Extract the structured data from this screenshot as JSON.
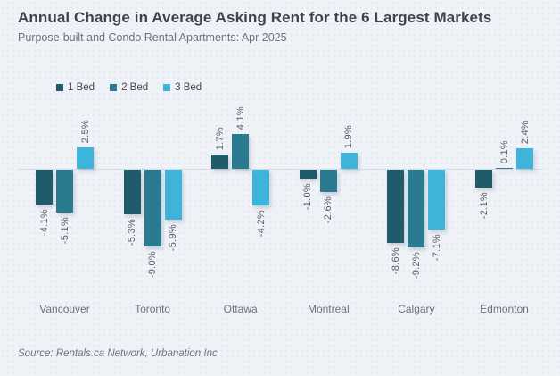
{
  "header": {
    "title": "Annual Change in Average Asking Rent for the 6 Largest Markets",
    "subtitle": "Purpose-built and Condo Rental Apartments: Apr 2025"
  },
  "source": "Source: Rentals.ca Network, Urbanation Inc",
  "colors": {
    "bed1": "#1f5b6b",
    "bed2": "#2b7b90",
    "bed3": "#3fb4da",
    "background": "#eff2f7",
    "baseline": "#d7dce3",
    "title_text": "#3f444b",
    "muted_text": "#6d737c"
  },
  "chart_data": {
    "type": "bar",
    "title": "Annual Change in Average Asking Rent for the 6 Largest Markets",
    "subtitle": "Purpose-built and Condo Rental Apartments: Apr 2025",
    "categories": [
      "Vancouver",
      "Toronto",
      "Ottawa",
      "Montreal",
      "Calgary",
      "Edmonton"
    ],
    "series": [
      {
        "name": "1 Bed",
        "color": "#1f5b6b",
        "values": [
          -4.1,
          -5.3,
          1.7,
          -1.0,
          -8.6,
          -2.1
        ]
      },
      {
        "name": "2 Bed",
        "color": "#2b7b90",
        "values": [
          -5.1,
          -9.0,
          4.1,
          -2.6,
          -9.2,
          0.1
        ]
      },
      {
        "name": "3 Bed",
        "color": "#3fb4da",
        "values": [
          2.5,
          -5.9,
          -4.2,
          1.9,
          -7.1,
          2.4
        ]
      }
    ],
    "value_suffix": "%",
    "ylabel": "",
    "xlabel": "",
    "ylim": [
      -10,
      5
    ],
    "baseline_value": 0,
    "grid": false,
    "data_labels": "rotated-90",
    "legend_position": "top-left"
  }
}
